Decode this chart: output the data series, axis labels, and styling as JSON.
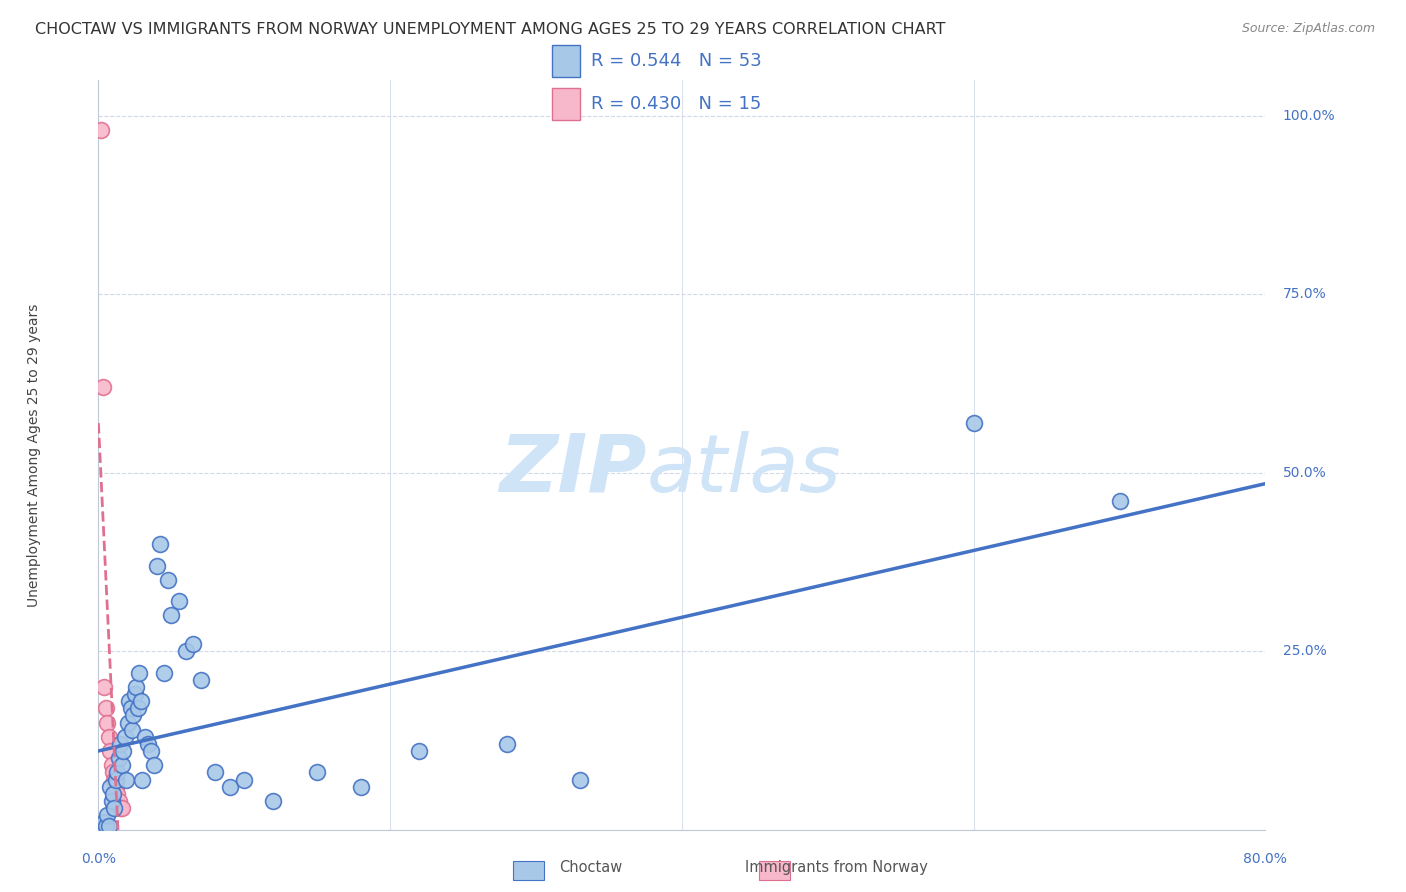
{
  "title": "CHOCTAW VS IMMIGRANTS FROM NORWAY UNEMPLOYMENT AMONG AGES 25 TO 29 YEARS CORRELATION CHART",
  "source": "Source: ZipAtlas.com",
  "ylabel": "Unemployment Among Ages 25 to 29 years",
  "choctaw_R": 0.544,
  "choctaw_N": 53,
  "norway_R": 0.43,
  "norway_N": 15,
  "choctaw_color": "#a8c8e8",
  "choctaw_line_color": "#4472c4",
  "norway_color": "#f8b8cc",
  "norway_line_color": "#e07090",
  "watermark_zip": "ZIP",
  "watermark_atlas": "atlas",
  "watermark_color": "#d0e4f8",
  "choctaw_points": [
    [
      0.002,
      0.005
    ],
    [
      0.003,
      0.003
    ],
    [
      0.004,
      0.01
    ],
    [
      0.005,
      0.005
    ],
    [
      0.006,
      0.02
    ],
    [
      0.007,
      0.005
    ],
    [
      0.008,
      0.06
    ],
    [
      0.009,
      0.04
    ],
    [
      0.01,
      0.05
    ],
    [
      0.011,
      0.03
    ],
    [
      0.012,
      0.07
    ],
    [
      0.013,
      0.08
    ],
    [
      0.014,
      0.1
    ],
    [
      0.015,
      0.12
    ],
    [
      0.016,
      0.09
    ],
    [
      0.017,
      0.11
    ],
    [
      0.018,
      0.13
    ],
    [
      0.019,
      0.07
    ],
    [
      0.02,
      0.15
    ],
    [
      0.021,
      0.18
    ],
    [
      0.022,
      0.17
    ],
    [
      0.023,
      0.14
    ],
    [
      0.024,
      0.16
    ],
    [
      0.025,
      0.19
    ],
    [
      0.026,
      0.2
    ],
    [
      0.027,
      0.17
    ],
    [
      0.028,
      0.22
    ],
    [
      0.029,
      0.18
    ],
    [
      0.03,
      0.07
    ],
    [
      0.032,
      0.13
    ],
    [
      0.034,
      0.12
    ],
    [
      0.036,
      0.11
    ],
    [
      0.038,
      0.09
    ],
    [
      0.04,
      0.37
    ],
    [
      0.042,
      0.4
    ],
    [
      0.045,
      0.22
    ],
    [
      0.048,
      0.35
    ],
    [
      0.05,
      0.3
    ],
    [
      0.055,
      0.32
    ],
    [
      0.06,
      0.25
    ],
    [
      0.065,
      0.26
    ],
    [
      0.07,
      0.21
    ],
    [
      0.08,
      0.08
    ],
    [
      0.09,
      0.06
    ],
    [
      0.1,
      0.07
    ],
    [
      0.12,
      0.04
    ],
    [
      0.15,
      0.08
    ],
    [
      0.18,
      0.06
    ],
    [
      0.22,
      0.11
    ],
    [
      0.28,
      0.12
    ],
    [
      0.33,
      0.07
    ],
    [
      0.6,
      0.57
    ],
    [
      0.7,
      0.46
    ]
  ],
  "norway_points": [
    [
      0.002,
      0.98
    ],
    [
      0.003,
      0.62
    ],
    [
      0.004,
      0.2
    ],
    [
      0.005,
      0.17
    ],
    [
      0.006,
      0.15
    ],
    [
      0.007,
      0.13
    ],
    [
      0.008,
      0.11
    ],
    [
      0.009,
      0.09
    ],
    [
      0.01,
      0.08
    ],
    [
      0.011,
      0.07
    ],
    [
      0.012,
      0.06
    ],
    [
      0.013,
      0.05
    ],
    [
      0.014,
      0.04
    ],
    [
      0.015,
      0.03
    ],
    [
      0.016,
      0.03
    ]
  ],
  "norway_line_x": [
    0.0,
    0.022
  ],
  "xlim": [
    0.0,
    0.8
  ],
  "ylim": [
    0.0,
    1.05
  ],
  "xticks": [
    0.0,
    0.2,
    0.4,
    0.6,
    0.8
  ],
  "yticks": [
    0.0,
    0.25,
    0.5,
    0.75,
    1.0
  ],
  "background_color": "#ffffff",
  "grid_color": "#d0dae8",
  "title_fontsize": 11.5,
  "axis_label_fontsize": 10,
  "tick_fontsize": 10,
  "legend_fontsize": 13
}
